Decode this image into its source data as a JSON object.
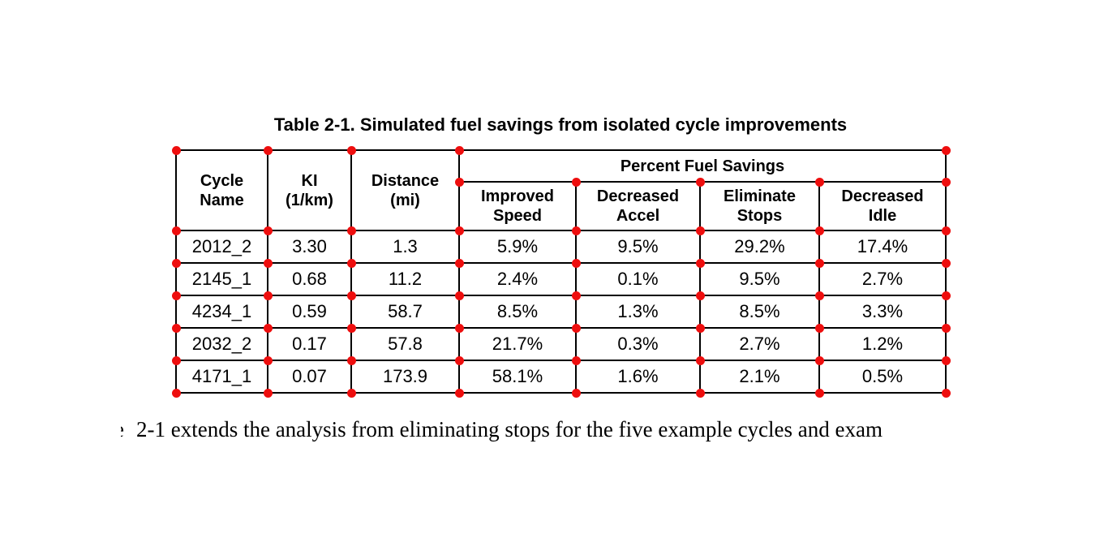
{
  "title": "Table 2-1. Simulated fuel savings from isolated cycle improvements",
  "table": {
    "span_header": "Percent Fuel Savings",
    "columns": [
      {
        "line1": "Cycle",
        "line2": "Name"
      },
      {
        "line1": "KI",
        "line2": "(1/km)"
      },
      {
        "line1": "Distance",
        "line2": "(mi)"
      },
      {
        "line1": "Improved",
        "line2": "Speed"
      },
      {
        "line1": "Decreased",
        "line2": "Accel"
      },
      {
        "line1": "Eliminate",
        "line2": "Stops"
      },
      {
        "line1": "Decreased",
        "line2": "Idle"
      }
    ],
    "rows": [
      [
        "2012_2",
        "3.30",
        "1.3",
        "5.9%",
        "9.5%",
        "29.2%",
        "17.4%"
      ],
      [
        "2145_1",
        "0.68",
        "11.2",
        "2.4%",
        "0.1%",
        "9.5%",
        "2.7%"
      ],
      [
        "4234_1",
        "0.59",
        "58.7",
        "8.5%",
        "1.3%",
        "8.5%",
        "3.3%"
      ],
      [
        "2032_2",
        "0.17",
        "57.8",
        "21.7%",
        "0.3%",
        "2.7%",
        "1.2%"
      ],
      [
        "4171_1",
        "0.07",
        "173.9",
        "58.1%",
        "1.6%",
        "2.1%",
        "0.5%"
      ]
    ]
  },
  "body_text": {
    "clipped_fragment": "e",
    "text": "2-1 extends the analysis from eliminating stops for the five example cycles and exam"
  },
  "annotation": {
    "dot_color": "#ee0e0e"
  },
  "colors": {
    "background": "#ffffff",
    "text": "#000000",
    "table_border": "#000000"
  }
}
